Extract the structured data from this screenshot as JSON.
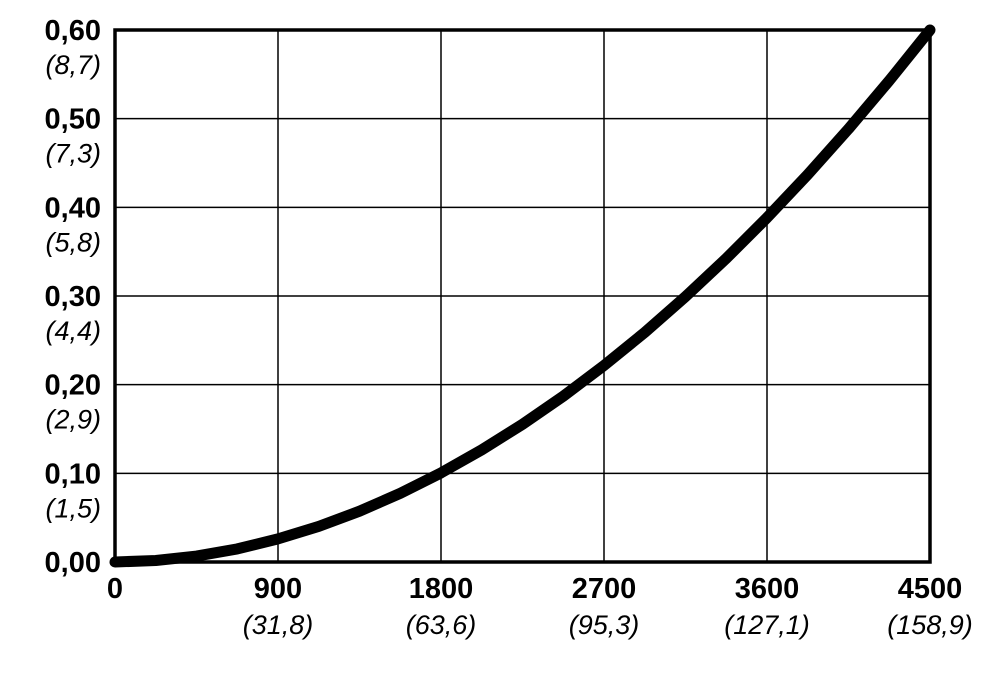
{
  "chart_data": {
    "type": "line",
    "title": "",
    "xlabel": "",
    "ylabel": "",
    "xlim": [
      0,
      4500
    ],
    "ylim": [
      0,
      0.6
    ],
    "grid": true,
    "legend": "none",
    "decimal_separator": ",",
    "x_ticks": [
      {
        "value": 0,
        "label": "0",
        "secondary": ""
      },
      {
        "value": 900,
        "label": "900",
        "secondary": "(31,8)"
      },
      {
        "value": 1800,
        "label": "1800",
        "secondary": "(63,6)"
      },
      {
        "value": 2700,
        "label": "2700",
        "secondary": "(95,3)"
      },
      {
        "value": 3600,
        "label": "3600",
        "secondary": "(127,1)"
      },
      {
        "value": 4500,
        "label": "4500",
        "secondary": "(158,9)"
      }
    ],
    "y_ticks": [
      {
        "value": 0.0,
        "label": "0,00",
        "secondary": ""
      },
      {
        "value": 0.1,
        "label": "0,10",
        "secondary": "(1,5)"
      },
      {
        "value": 0.2,
        "label": "0,20",
        "secondary": "(2,9)"
      },
      {
        "value": 0.3,
        "label": "0,30",
        "secondary": "(4,4)"
      },
      {
        "value": 0.4,
        "label": "0,40",
        "secondary": "(5,8)"
      },
      {
        "value": 0.5,
        "label": "0,50",
        "secondary": "(7,3)"
      },
      {
        "value": 0.6,
        "label": "0,60",
        "secondary": "(8,7)"
      }
    ],
    "series": [
      {
        "name": "curve",
        "color": "#000000",
        "x": [
          0,
          225,
          450,
          675,
          900,
          1125,
          1350,
          1575,
          1800,
          2025,
          2250,
          2475,
          2700,
          2925,
          3150,
          3375,
          3600,
          3825,
          4050,
          4275,
          4500
        ],
        "y": [
          0.0,
          0.0017,
          0.0067,
          0.0148,
          0.026,
          0.0402,
          0.0573,
          0.0775,
          0.1005,
          0.1265,
          0.1553,
          0.187,
          0.2216,
          0.259,
          0.2993,
          0.3424,
          0.3883,
          0.437,
          0.4885,
          0.5429,
          0.6
        ]
      }
    ]
  },
  "colors": {
    "background": "#ffffff",
    "grid": "#000000",
    "axis": "#000000",
    "curve": "#000000"
  }
}
